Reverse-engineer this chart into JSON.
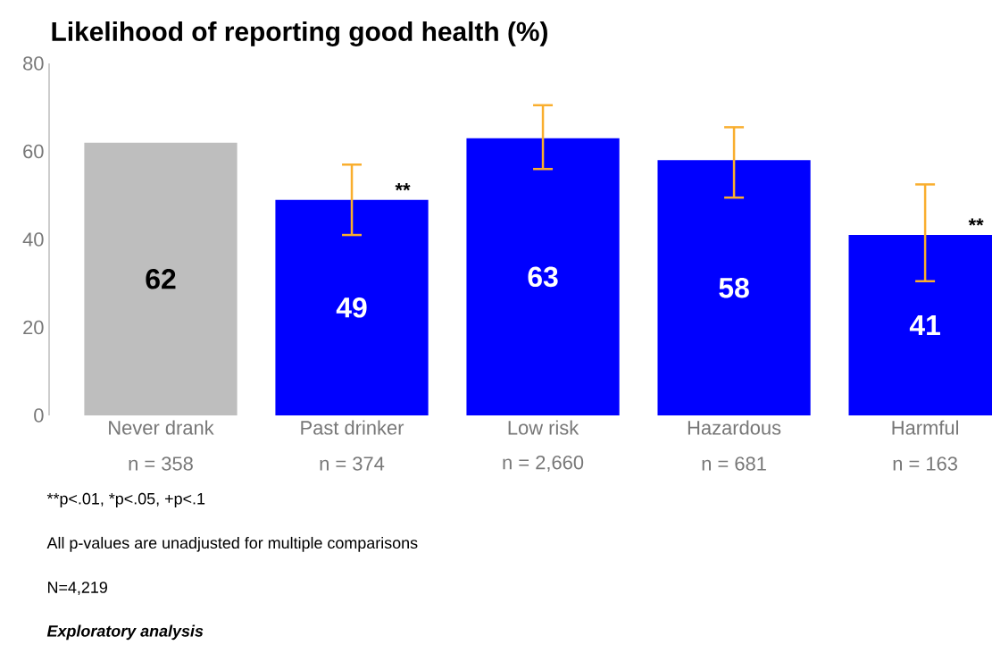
{
  "chart_data": {
    "type": "bar",
    "title": "Likelihood of reporting good health (%)",
    "categories": [
      "Never drank",
      "Past drinker",
      "Low risk",
      "Hazardous",
      "Harmful"
    ],
    "values": [
      62,
      49,
      63,
      58,
      41
    ],
    "colors": [
      "#bebebe",
      "#0000ff",
      "#0000ff",
      "#0000ff",
      "#0000ff"
    ],
    "errors": [
      null,
      [
        41,
        57
      ],
      [
        56,
        70.5
      ],
      [
        49.5,
        65.5
      ],
      [
        30.5,
        52.5
      ]
    ],
    "data_labels": true,
    "ylim": [
      0,
      80
    ],
    "yticks": [
      0,
      20,
      40,
      60,
      80
    ],
    "annotations": [
      "n = 358",
      "n = 374",
      "n = 2,660",
      "n = 681",
      "n = 163",
      {
        "text": "**",
        "x": "Past drinker",
        "y": 49
      },
      {
        "text": "**",
        "x": "Harmful",
        "y": 41
      },
      "**p<.01,    *p<.05,    +p<.1",
      "All p-values are unadjusted for multiple comparisons",
      "N=4,219",
      "Exploratory analysis"
    ]
  }
}
